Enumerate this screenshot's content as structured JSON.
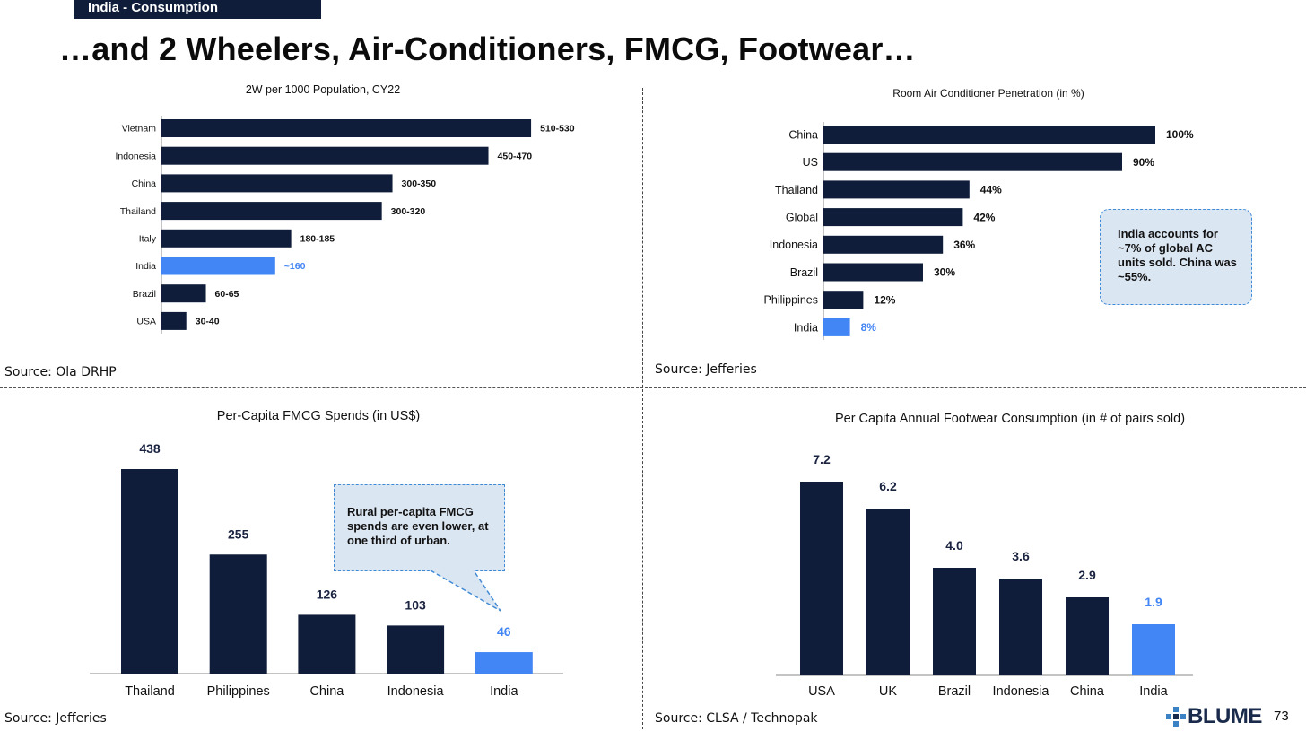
{
  "header": {
    "tag": "India - Consumption",
    "title": "…and 2 Wheelers, Air-Conditioners, FMCG, Footwear…"
  },
  "chart_data": [
    {
      "id": "two_wheelers",
      "type": "bar",
      "orientation": "horizontal",
      "title": "2W per 1000 Population, CY22",
      "categories": [
        "Vietnam",
        "Indonesia",
        "China",
        "Thailand",
        "Italy",
        "India",
        "Brazil",
        "USA"
      ],
      "values": [
        520,
        460,
        325,
        310,
        182.5,
        160,
        62.5,
        35
      ],
      "labels": [
        "510-530",
        "450-470",
        "300-350",
        "300-320",
        "180-185",
        "~160",
        "60-65",
        "30-40"
      ],
      "highlight": "India",
      "xlim": [
        0,
        530
      ],
      "source": "Source: Ola DRHP"
    },
    {
      "id": "ac_penetration",
      "type": "bar",
      "orientation": "horizontal",
      "title": "Room Air Conditioner Penetration (in %)",
      "categories": [
        "China",
        "US",
        "Thailand",
        "Global",
        "Indonesia",
        "Brazil",
        "Philippines",
        "India"
      ],
      "values": [
        100,
        90,
        44,
        42,
        36,
        30,
        12,
        8
      ],
      "labels": [
        "100%",
        "90%",
        "44%",
        "42%",
        "36%",
        "30%",
        "12%",
        "8%"
      ],
      "highlight": "India",
      "xlim": [
        0,
        100
      ],
      "callout": "India accounts for ~7% of global AC units sold. China was ~55%.",
      "source": "Source: Jefferies"
    },
    {
      "id": "fmcg_spend",
      "type": "bar",
      "orientation": "vertical",
      "title": "Per-Capita FMCG Spends (in US$)",
      "categories": [
        "Thailand",
        "Philippines",
        "China",
        "Indonesia",
        "India"
      ],
      "values": [
        438,
        255,
        126,
        103,
        46
      ],
      "labels": [
        "438",
        "255",
        "126",
        "103",
        "46"
      ],
      "highlight": "India",
      "ylim": [
        0,
        438
      ],
      "callout": "Rural per-capita FMCG spends are even lower, at one third of urban.",
      "source": "Source: Jefferies"
    },
    {
      "id": "footwear",
      "type": "bar",
      "orientation": "vertical",
      "title": "Per Capita Annual Footwear Consumption (in # of pairs sold)",
      "categories": [
        "USA",
        "UK",
        "Brazil",
        "Indonesia",
        "China",
        "India"
      ],
      "values": [
        7.2,
        6.2,
        4.0,
        3.6,
        2.9,
        1.9
      ],
      "labels": [
        "7.2",
        "6.2",
        "4.0",
        "3.6",
        "2.9",
        "1.9"
      ],
      "highlight": "India",
      "ylim": [
        0,
        7.2
      ],
      "source": "Source: CLSA / Technopak"
    }
  ],
  "colors": {
    "bar": "#0f1d3a",
    "highlight": "#4285f4",
    "axis": "#888888"
  },
  "footer": {
    "logo": "BLUME",
    "page": "73"
  }
}
